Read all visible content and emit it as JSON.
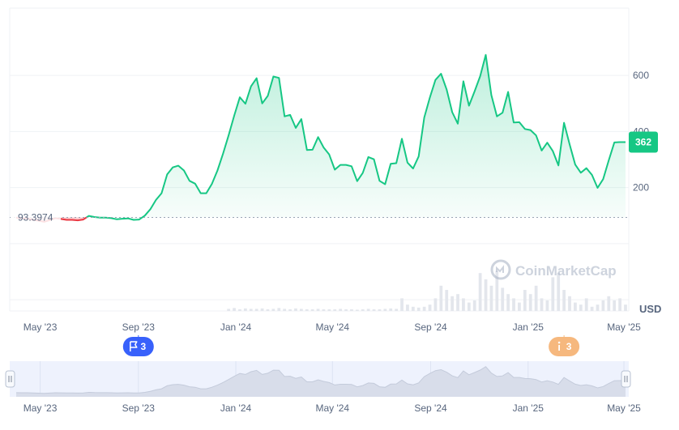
{
  "chart_data": {
    "type": "area",
    "x": [
      "2023-04-01",
      "2023-04-08",
      "2023-04-15",
      "2023-04-22",
      "2023-04-29",
      "2023-05-06",
      "2023-05-13",
      "2023-05-20",
      "2023-05-27",
      "2023-06-03",
      "2023-06-10",
      "2023-06-17",
      "2023-06-24",
      "2023-07-01",
      "2023-07-08",
      "2023-07-15",
      "2023-07-22",
      "2023-07-29",
      "2023-08-05",
      "2023-08-12",
      "2023-08-19",
      "2023-08-26",
      "2023-09-02",
      "2023-09-09",
      "2023-09-16",
      "2023-09-23",
      "2023-09-30",
      "2023-10-07",
      "2023-10-14",
      "2023-10-21",
      "2023-10-28",
      "2023-11-04",
      "2023-11-11",
      "2023-11-18",
      "2023-11-25",
      "2023-12-02",
      "2023-12-09",
      "2023-12-16",
      "2023-12-23",
      "2023-12-30",
      "2024-01-06",
      "2024-01-13",
      "2024-01-20",
      "2024-01-27",
      "2024-02-03",
      "2024-02-10",
      "2024-02-17",
      "2024-02-24",
      "2024-03-02",
      "2024-03-09",
      "2024-03-16",
      "2024-03-23",
      "2024-03-30",
      "2024-04-06",
      "2024-04-13",
      "2024-04-20",
      "2024-04-27",
      "2024-05-04",
      "2024-05-11",
      "2024-05-18",
      "2024-05-25",
      "2024-06-01",
      "2024-06-08",
      "2024-06-15",
      "2024-06-22",
      "2024-06-29",
      "2024-07-06",
      "2024-07-13",
      "2024-07-20",
      "2024-07-27",
      "2024-08-03",
      "2024-08-10",
      "2024-08-17",
      "2024-08-24",
      "2024-08-31",
      "2024-09-07",
      "2024-09-14",
      "2024-09-21",
      "2024-09-28",
      "2024-10-05",
      "2024-10-12",
      "2024-10-19",
      "2024-10-26",
      "2024-11-02",
      "2024-11-09",
      "2024-11-16",
      "2024-11-23",
      "2024-11-30",
      "2024-12-07",
      "2024-12-14",
      "2024-12-21",
      "2024-12-28",
      "2025-01-04",
      "2025-01-11",
      "2025-01-18",
      "2025-01-25",
      "2025-02-01",
      "2025-02-08",
      "2025-02-15",
      "2025-02-22",
      "2025-03-01",
      "2025-03-08",
      "2025-03-15",
      "2025-03-22",
      "2025-03-29",
      "2025-04-05",
      "2025-04-12",
      "2025-04-19",
      "2025-04-26",
      "2025-05-03"
    ],
    "series": [
      {
        "values": [
          93,
          91,
          90,
          85,
          82,
          78,
          84,
          91,
          88,
          85,
          85,
          83,
          86,
          99,
          95,
          93,
          93,
          91,
          87,
          89,
          90,
          85,
          86,
          100,
          123,
          156,
          180,
          247,
          272,
          278,
          261,
          224,
          214,
          180,
          180,
          213,
          261,
          321,
          387,
          457,
          522,
          499,
          561,
          590,
          500,
          527,
          596,
          591,
          454,
          459,
          413,
          444,
          334,
          335,
          380,
          343,
          318,
          264,
          281,
          281,
          276,
          223,
          252,
          309,
          301,
          224,
          212,
          285,
          287,
          374,
          289,
          268,
          311,
          450,
          521,
          584,
          606,
          550,
          469,
          428,
          579,
          492,
          543,
          597,
          673,
          530,
          454,
          467,
          541,
          432,
          433,
          409,
          405,
          386,
          332,
          360,
          330,
          279,
          431,
          354,
          282,
          253,
          269,
          245,
          199,
          230,
          297,
          361,
          362,
          362
        ],
        "color": "#16c784"
      }
    ],
    "baseline": 93.3974,
    "baseline_label": "93.3974",
    "y_axis_ticks": [
      "200",
      "400",
      "600"
    ],
    "ylim": [
      -240,
      840
    ],
    "y_unit": "USD",
    "last_value_label": "362",
    "x_tick_labels": [
      "May '23",
      "Sep '23",
      "Jan '24",
      "May '24",
      "Sep '24",
      "Jan '25",
      "May '25"
    ],
    "volume_bars": [
      0,
      0,
      0,
      0,
      0,
      0,
      0,
      0,
      0,
      0,
      0,
      0,
      0,
      0,
      0,
      0,
      0,
      0,
      0,
      0,
      0,
      0,
      0,
      0,
      0,
      0,
      0,
      0,
      0,
      0,
      0,
      0,
      0,
      0,
      0,
      0,
      0,
      0,
      0.05,
      0.07,
      0.04,
      0.06,
      0.05,
      0.05,
      0.06,
      0.04,
      0.05,
      0.07,
      0.05,
      0.04,
      0.06,
      0.05,
      0.04,
      0.04,
      0.05,
      0.04,
      0.04,
      0.04,
      0.05,
      0.04,
      0.04,
      0.03,
      0.04,
      0.05,
      0.04,
      0.04,
      0.05,
      0.06,
      0.05,
      0.3,
      0.15,
      0.1,
      0.08,
      0.1,
      0.15,
      0.3,
      0.6,
      0.5,
      0.35,
      0.4,
      0.3,
      0.2,
      0.25,
      0.9,
      0.75,
      0.6,
      0.95,
      0.55,
      0.4,
      0.3,
      0.2,
      0.5,
      0.4,
      0.6,
      0.3,
      0.25,
      0.8,
      0.9,
      0.5,
      0.35,
      0.2,
      0.15,
      0.3,
      0.1,
      0.15,
      0.25,
      0.35,
      0.25,
      0.3,
      0.15
    ],
    "event_markers": [
      {
        "kind": "flag",
        "count": "3",
        "color": "#3861fb",
        "x": "2023-09-01"
      },
      {
        "kind": "info",
        "count": "3",
        "color": "#f6b87e",
        "x": "2025-02-15"
      }
    ],
    "watermark": "CoinMarketCap",
    "navigator": {
      "x_tick_labels": [
        "May '23",
        "Sep '23",
        "Jan '24",
        "May '24",
        "Sep '24",
        "Jan '25",
        "May '25"
      ],
      "left_handle_icon": "drag-handle-icon",
      "right_handle_icon": "drag-handle-icon"
    },
    "grid": true
  },
  "colors": {
    "up": "#16c784",
    "down": "#ea3943",
    "grid": "#eff2f5",
    "axis_text": "#58667e",
    "navigator_bg": "#eef2fd",
    "navigator_line": "#d7deea"
  }
}
